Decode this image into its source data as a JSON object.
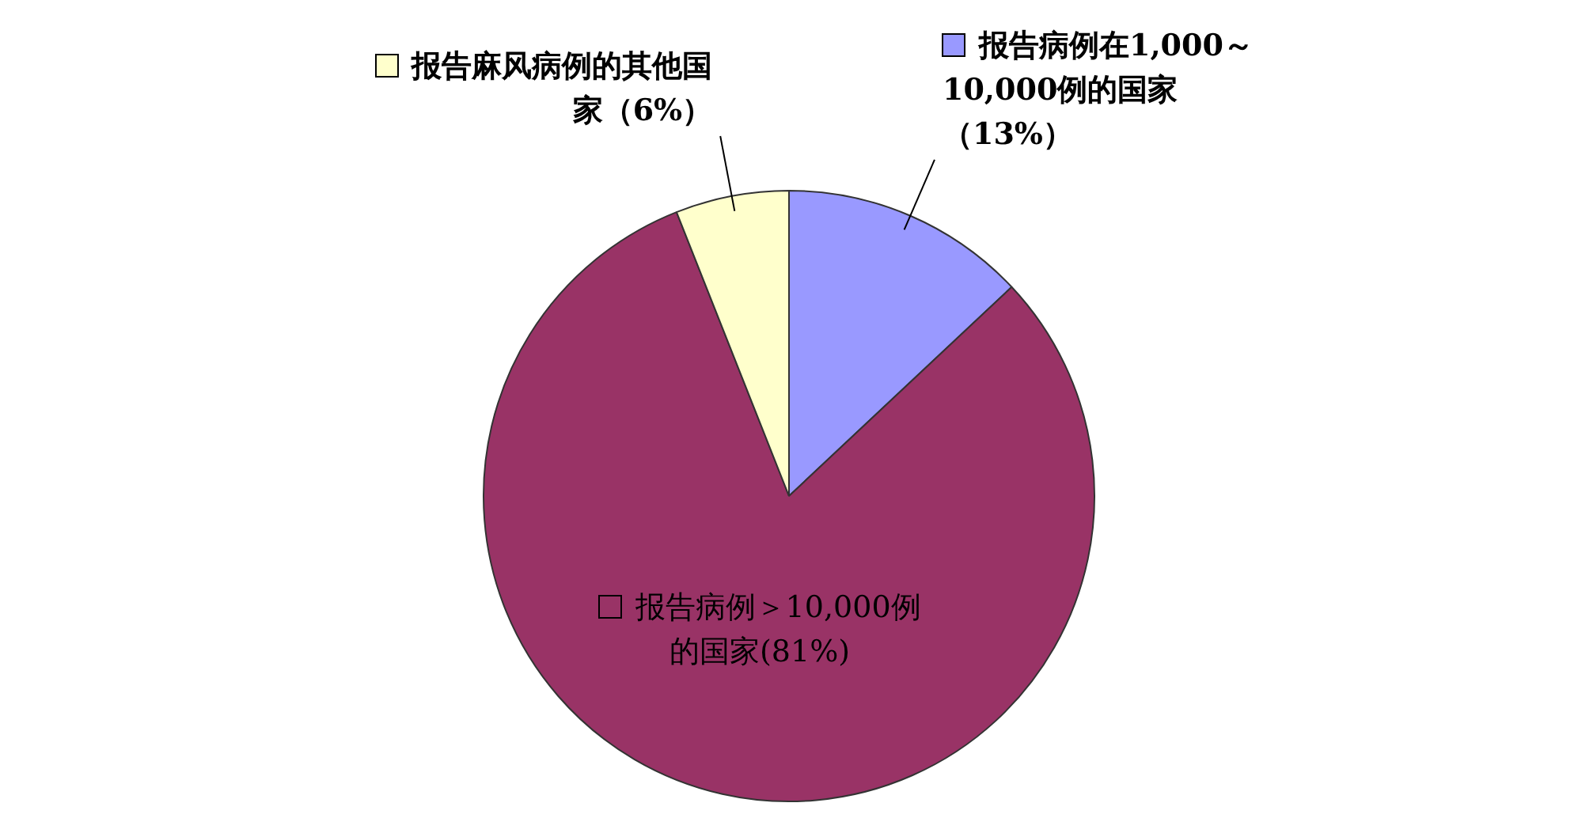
{
  "chart_data": {
    "type": "pie",
    "categories": [
      "报告病例在1,000～10,000例的国家",
      "报告病例＞10,000例的国家",
      "报告麻风病例的其他国家"
    ],
    "values": [
      13,
      81,
      6
    ],
    "colors": [
      "#9999ff",
      "#993366",
      "#ffffcc"
    ],
    "value_labels": [
      "（13%）",
      "(81%)",
      "（6%）"
    ],
    "legend": "top"
  }
}
